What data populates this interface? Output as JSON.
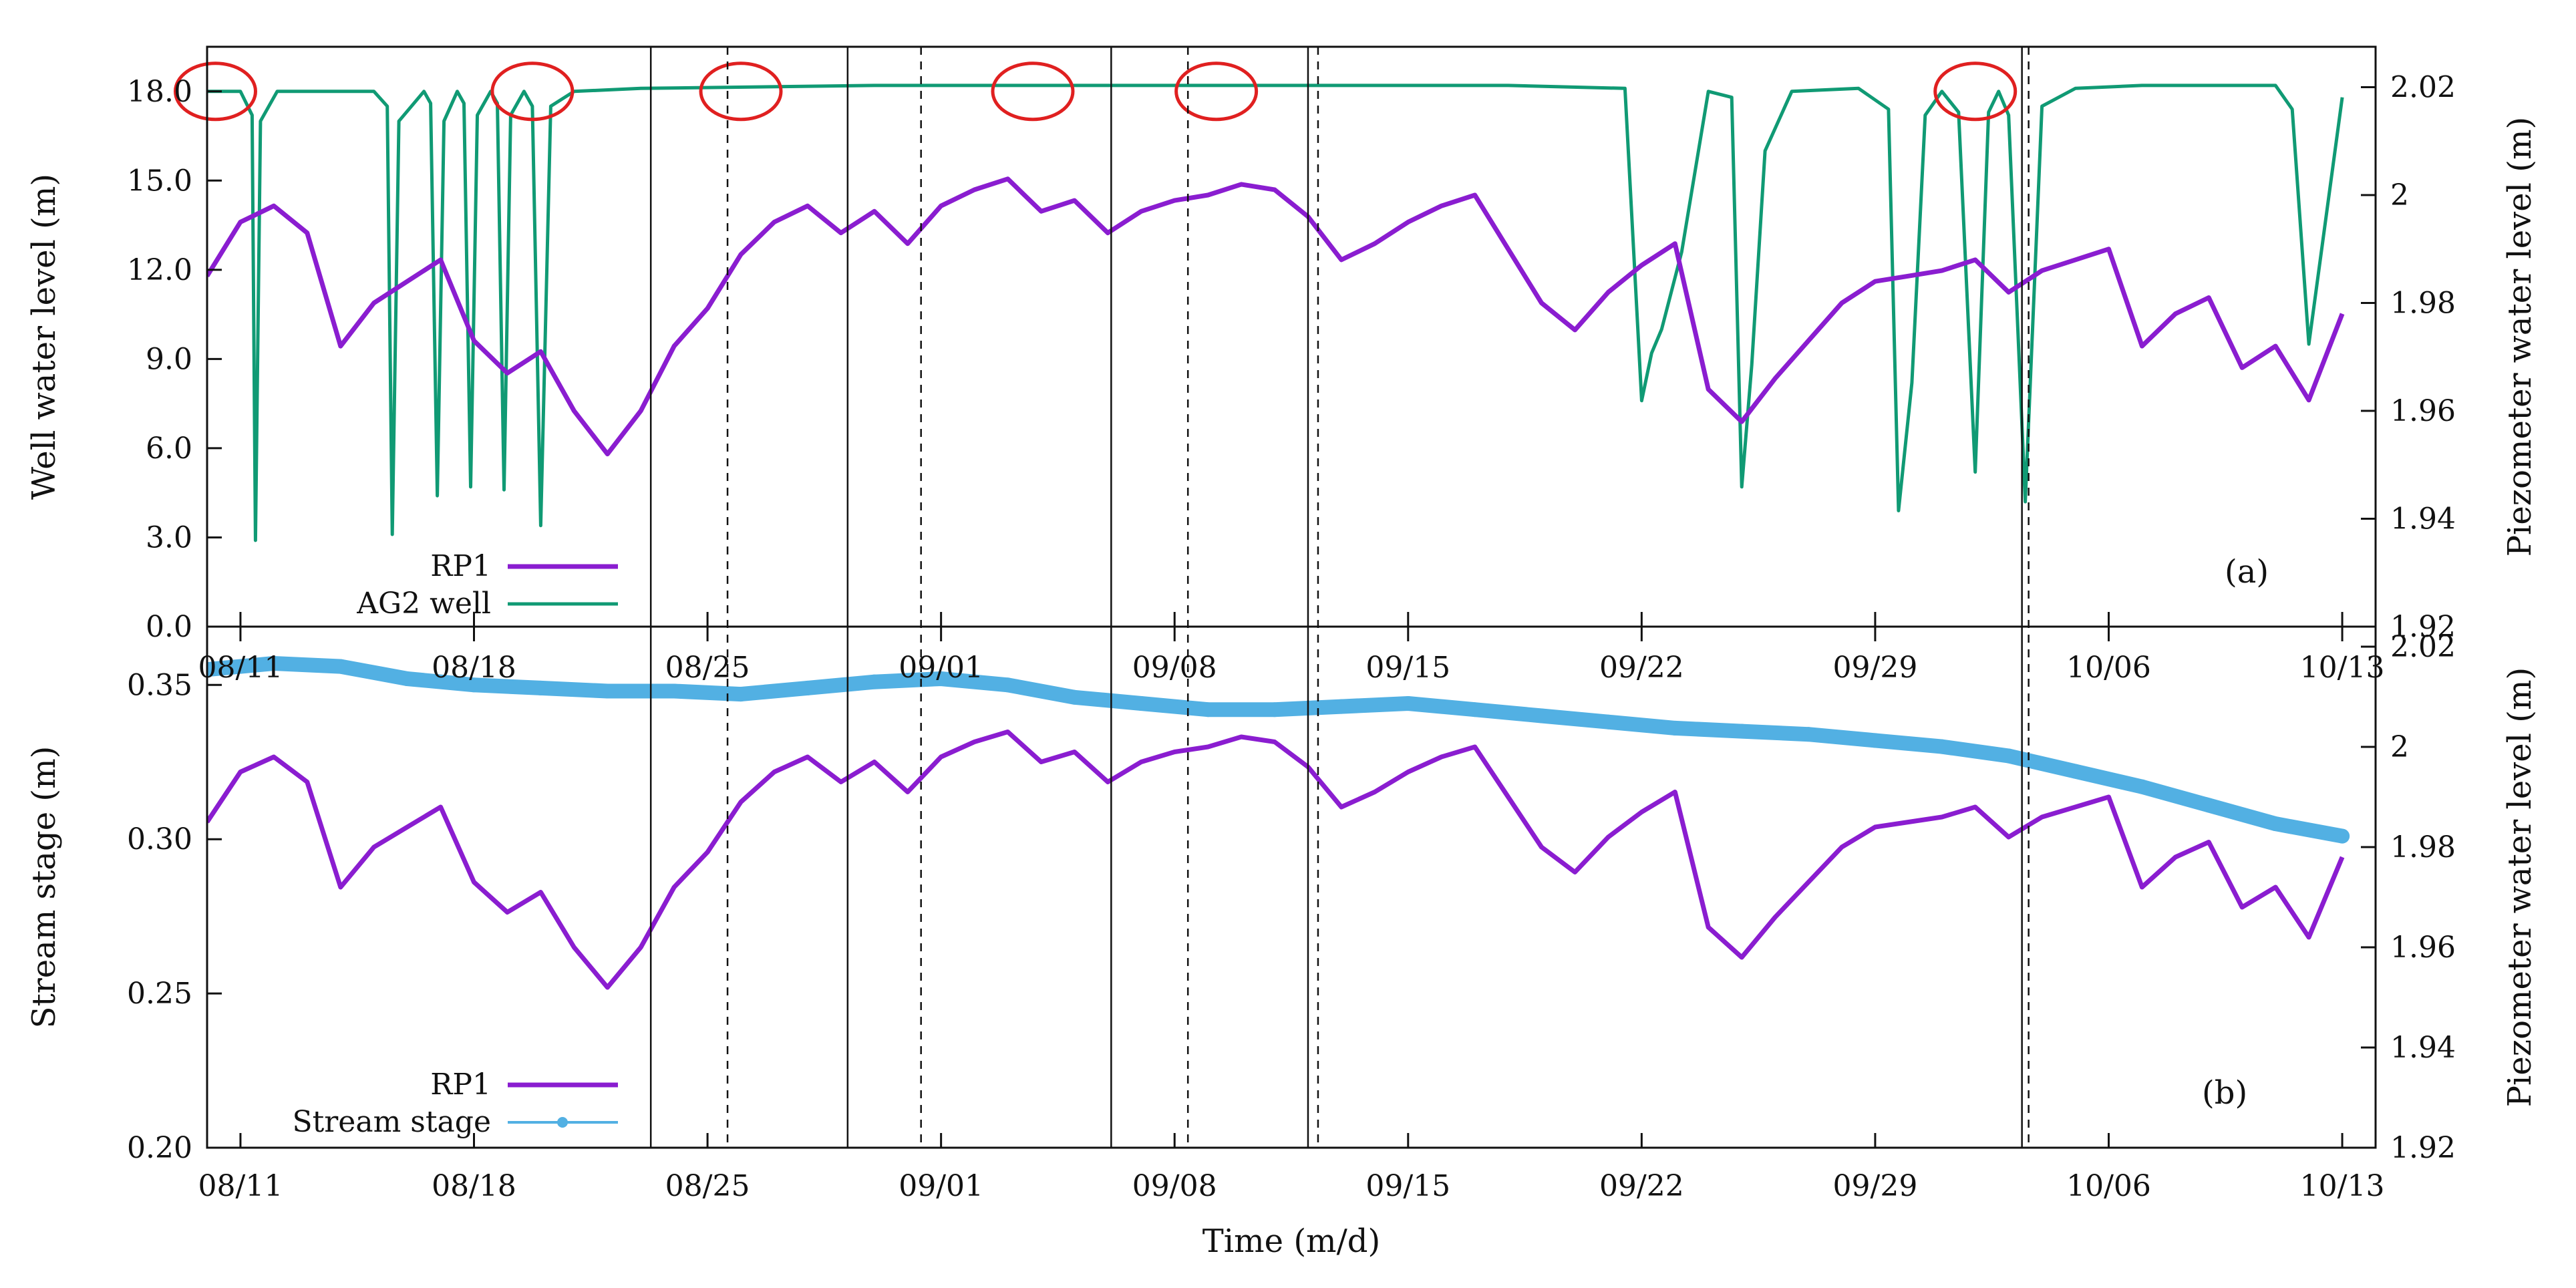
{
  "chart_data": [
    {
      "type": "line",
      "panel_label": "(a)",
      "ylabel_left": "Well water level (m)",
      "ylabel_right": "Piezometer water level (m)",
      "ylim_left": [
        0,
        19.5
      ],
      "ylim_right": [
        1.92,
        2.0275
      ],
      "yticks_left": [
        "0.0",
        "3.0",
        "6.0",
        "9.0",
        "12.0",
        "15.0",
        "18.0"
      ],
      "yticks_right": [
        "1.92",
        "1.94",
        "1.96",
        "1.98",
        "2",
        "2.02"
      ],
      "legend_position": "bottom-left",
      "series": [
        {
          "name": "RP1",
          "axis": "right",
          "color": "#8a1dd0",
          "x": [
            0,
            1,
            2,
            3,
            4,
            5,
            6,
            7,
            8,
            9,
            10,
            11,
            12,
            13,
            14,
            15,
            16,
            17,
            18,
            19,
            20,
            21,
            22,
            23,
            24,
            25,
            26,
            27,
            28,
            29,
            30,
            31,
            32,
            33,
            34,
            35,
            36,
            37,
            38,
            39,
            40,
            41,
            42,
            43,
            44,
            45,
            46,
            47,
            48,
            49,
            50,
            51,
            52,
            53,
            54,
            55,
            56,
            57,
            58,
            59,
            60,
            61,
            62,
            63,
            64
          ],
          "values": [
            1.985,
            1.995,
            1.998,
            1.993,
            1.972,
            1.98,
            1.984,
            1.988,
            1.973,
            1.967,
            1.971,
            1.96,
            1.952,
            1.96,
            1.972,
            1.979,
            1.989,
            1.995,
            1.998,
            1.993,
            1.997,
            1.991,
            1.998,
            2.001,
            2.003,
            1.997,
            1.999,
            1.993,
            1.997,
            1.999,
            2.0,
            2.002,
            2.001,
            1.996,
            1.988,
            1.991,
            1.995,
            1.998,
            2.0,
            1.99,
            1.98,
            1.975,
            1.982,
            1.987,
            1.991,
            1.964,
            1.958,
            1.966,
            1.973,
            1.98,
            1.984,
            1.985,
            1.986,
            1.988,
            1.982,
            1.986,
            1.988,
            1.99,
            1.972,
            1.978,
            1.981,
            1.968,
            1.972,
            1.962,
            1.978
          ]
        },
        {
          "name": "AG2 well",
          "axis": "left",
          "color": "#109a74",
          "x": [
            0,
            1,
            1.35,
            1.45,
            1.6,
            2.1,
            5,
            5.4,
            5.55,
            5.75,
            6.5,
            6.7,
            6.9,
            7.1,
            7.5,
            7.7,
            7.9,
            8.1,
            8.5,
            8.7,
            8.9,
            9.1,
            9.5,
            9.75,
            10.0,
            10.3,
            11,
            13,
            20,
            27,
            31,
            35,
            39,
            42.5,
            43.0,
            43.3,
            43.6,
            44.2,
            45,
            45.7,
            46.0,
            46.3,
            46.7,
            47.5,
            49.5,
            50.4,
            50.7,
            51.1,
            51.5,
            52,
            52.5,
            53,
            53.4,
            53.7,
            54.0,
            54.5,
            55,
            56,
            58,
            62,
            62.5,
            63,
            64
          ],
          "values": [
            18.0,
            18.0,
            17.2,
            2.9,
            17.0,
            18.0,
            18.0,
            17.5,
            3.1,
            17.0,
            18.0,
            17.6,
            4.4,
            17.0,
            18.0,
            17.6,
            4.7,
            17.2,
            18.0,
            17.6,
            4.6,
            17.2,
            18.0,
            17.5,
            3.4,
            17.5,
            18.0,
            18.1,
            18.2,
            18.2,
            18.2,
            18.2,
            18.2,
            18.1,
            7.6,
            9.2,
            10.0,
            12.6,
            18.0,
            17.8,
            4.7,
            8.8,
            16.0,
            18.0,
            18.1,
            17.4,
            3.9,
            8.2,
            17.2,
            18.0,
            17.3,
            5.2,
            17.3,
            18.0,
            17.2,
            4.2,
            17.5,
            18.1,
            18.2,
            18.2,
            17.4,
            9.5,
            17.8
          ]
        }
      ],
      "annotations": [
        {
          "type": "ellipse",
          "x": 0.25,
          "note": "red circle"
        },
        {
          "type": "ellipse",
          "x": 9.75,
          "note": "red circle"
        },
        {
          "type": "ellipse",
          "x": 16.0,
          "note": "red circle"
        },
        {
          "type": "ellipse",
          "x": 24.75,
          "note": "red circle"
        },
        {
          "type": "ellipse",
          "x": 30.25,
          "note": "red circle"
        },
        {
          "type": "ellipse",
          "x": 53.0,
          "note": "red circle"
        }
      ]
    },
    {
      "type": "line",
      "panel_label": "(b)",
      "xlabel": "Time (m/d)",
      "ylabel_left": "Stream stage (m)",
      "ylabel_right": "Piezometer water level (m)",
      "ylim_left": [
        0.2,
        0.3689
      ],
      "ylim_right": [
        1.92,
        2.024
      ],
      "yticks_left": [
        "0.20",
        "0.25",
        "0.30",
        "0.35"
      ],
      "yticks_right": [
        "1.92",
        "1.94",
        "1.96",
        "1.98",
        "2",
        "2.02"
      ],
      "x_ticks": [
        1,
        8,
        15,
        22,
        29,
        36,
        43,
        50,
        57,
        64
      ],
      "x_tick_labels": [
        "08/11",
        "08/18",
        "08/25",
        "09/01",
        "09/08",
        "09/15",
        "09/22",
        "09/29",
        "10/06",
        "10/13"
      ],
      "xlim": [
        0,
        65
      ],
      "legend_position": "bottom-left",
      "series": [
        {
          "name": "RP1",
          "axis": "right",
          "color": "#8a1dd0",
          "x": [
            0,
            1,
            2,
            3,
            4,
            5,
            6,
            7,
            8,
            9,
            10,
            11,
            12,
            13,
            14,
            15,
            16,
            17,
            18,
            19,
            20,
            21,
            22,
            23,
            24,
            25,
            26,
            27,
            28,
            29,
            30,
            31,
            32,
            33,
            34,
            35,
            36,
            37,
            38,
            39,
            40,
            41,
            42,
            43,
            44,
            45,
            46,
            47,
            48,
            49,
            50,
            51,
            52,
            53,
            54,
            55,
            56,
            57,
            58,
            59,
            60,
            61,
            62,
            63,
            64
          ],
          "values": [
            1.985,
            1.995,
            1.998,
            1.993,
            1.972,
            1.98,
            1.984,
            1.988,
            1.973,
            1.967,
            1.971,
            1.96,
            1.952,
            1.96,
            1.972,
            1.979,
            1.989,
            1.995,
            1.998,
            1.993,
            1.997,
            1.991,
            1.998,
            2.001,
            2.003,
            1.997,
            1.999,
            1.993,
            1.997,
            1.999,
            2.0,
            2.002,
            2.001,
            1.996,
            1.988,
            1.991,
            1.995,
            1.998,
            2.0,
            1.99,
            1.98,
            1.975,
            1.982,
            1.987,
            1.991,
            1.964,
            1.958,
            1.966,
            1.973,
            1.98,
            1.984,
            1.985,
            1.986,
            1.988,
            1.982,
            1.986,
            1.988,
            1.99,
            1.972,
            1.978,
            1.981,
            1.968,
            1.972,
            1.962,
            1.978
          ]
        },
        {
          "name": "Stream stage",
          "axis": "left",
          "color": "#52b0e3",
          "x": [
            0,
            2,
            4,
            6,
            8,
            10,
            12,
            14,
            16,
            18,
            20,
            22,
            24,
            26,
            28,
            30,
            32,
            34,
            36,
            38,
            40,
            42,
            44,
            46,
            48,
            50,
            52,
            54,
            56,
            58,
            60,
            62,
            64
          ],
          "values": [
            0.355,
            0.357,
            0.356,
            0.352,
            0.35,
            0.349,
            0.348,
            0.348,
            0.347,
            0.349,
            0.351,
            0.352,
            0.35,
            0.346,
            0.344,
            0.342,
            0.342,
            0.343,
            0.344,
            0.342,
            0.34,
            0.338,
            0.336,
            0.335,
            0.334,
            0.332,
            0.33,
            0.327,
            0.322,
            0.317,
            0.311,
            0.305,
            0.301
          ]
        }
      ]
    }
  ],
  "event_lines": {
    "solid": [
      13.3,
      19.2,
      27.1,
      33.0,
      54.4
    ],
    "dashed": [
      15.6,
      21.4,
      29.4,
      33.3,
      54.6
    ]
  }
}
